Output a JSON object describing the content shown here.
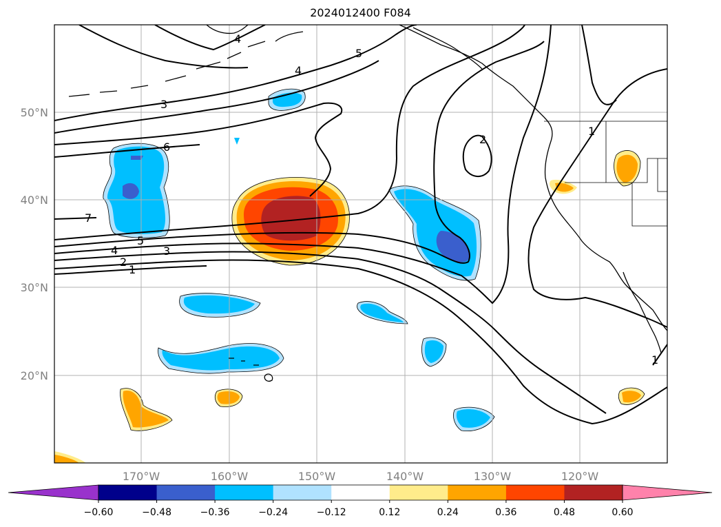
{
  "title": "2024012400 F084",
  "map": {
    "lat_ticks": [
      "50°N",
      "40°N",
      "30°N",
      "20°N"
    ],
    "lon_ticks": [
      "170°W",
      "160°W",
      "150°W",
      "140°W",
      "130°W",
      "120°W"
    ],
    "gridlines": true,
    "contour_labels": [
      "4",
      "5",
      "4",
      "3",
      "6",
      "7",
      "2",
      "1",
      "4",
      "5",
      "3",
      "2",
      "1",
      "1"
    ]
  },
  "colorbar": {
    "ticks": [
      "−0.60",
      "−0.48",
      "−0.36",
      "−0.24",
      "−0.12",
      "0.12",
      "0.24",
      "0.36",
      "0.48",
      "0.60"
    ],
    "colors": [
      "#9932cc",
      "#00008b",
      "#3a5fcd",
      "#00bfff",
      "#b0e2ff",
      "#ffffff",
      "#ffec8b",
      "#ffa500",
      "#ff4500",
      "#b22222",
      "#ff82ab"
    ],
    "extend": "both"
  }
}
